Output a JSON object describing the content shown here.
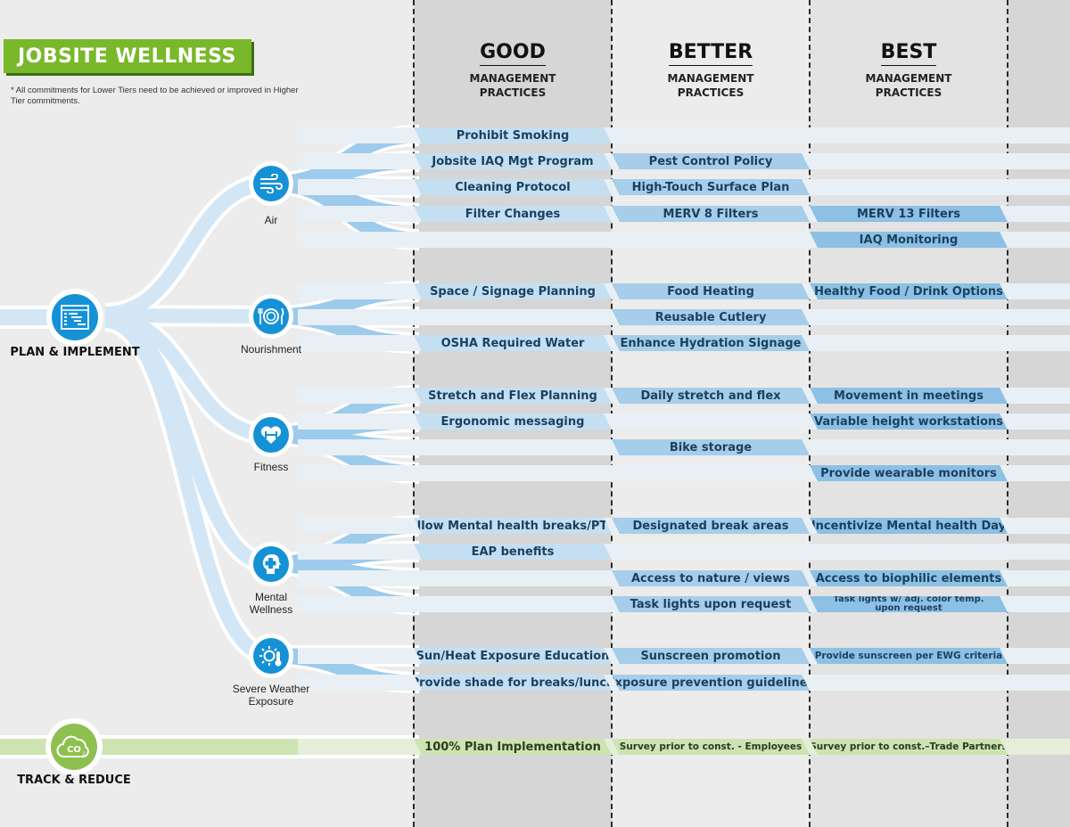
{
  "title": "JOBSITE WELLNESS",
  "note": "* All commitments for Lower Tiers need to be achieved or improved in Higher Tier commitments.",
  "columns": [
    {
      "title": "GOOD",
      "sub1": "MANAGEMENT",
      "sub2": "PRACTICES"
    },
    {
      "title": "BETTER",
      "sub1": "MANAGEMENT",
      "sub2": "PRACTICES"
    },
    {
      "title": "BEST",
      "sub1": "MANAGEMENT",
      "sub2": "PRACTICES"
    }
  ],
  "nodes": {
    "plan": "PLAN & IMPLEMENT",
    "air": "Air",
    "nourishment": "Nourishment",
    "fitness": "Fitness",
    "mental1": "Mental",
    "mental2": "Wellness",
    "weather1": "Severe Weather",
    "weather2": "Exposure",
    "track": "TRACK & REDUCE"
  },
  "rows": {
    "air": {
      "0": {
        "0": "Prohibit Smoking"
      },
      "1": {
        "0": "Jobsite IAQ Mgt Program",
        "1": "Pest Control Policy"
      },
      "2": {
        "0": "Cleaning Protocol",
        "1": "High-Touch Surface Plan"
      },
      "3": {
        "0": "Filter Changes",
        "1": "MERV 8 Filters",
        "2": "MERV 13 Filters"
      },
      "4": {
        "2": "IAQ Monitoring"
      }
    },
    "nourishment": {
      "0": {
        "0": "Space / Signage Planning",
        "1": "Food Heating",
        "2": "Healthy Food / Drink Options"
      },
      "1": {
        "1": "Reusable Cutlery"
      },
      "2": {
        "0": "OSHA Required Water",
        "1": "Enhance Hydration Signage"
      }
    },
    "fitness": {
      "0": {
        "0": "Stretch and Flex Planning",
        "1": "Daily stretch and flex",
        "2": "Movement in meetings"
      },
      "1": {
        "0": "Ergonomic messaging",
        "2": "Variable height workstations"
      },
      "2": {
        "1": "Bike storage"
      },
      "3": {
        "2": "Provide wearable monitors"
      }
    },
    "mental": {
      "0": {
        "0": "Allow Mental health breaks/PTO",
        "1": "Designated break areas",
        "2": "Incentivize Mental health Day"
      },
      "1": {
        "0": "EAP benefits"
      },
      "2": {
        "1": "Access to nature / views",
        "2": "Access to biophilic elements"
      },
      "3": {
        "1": "Task lights upon request",
        "2a": "Task lights w/ adj. color temp.",
        "2b": "upon request"
      }
    },
    "weather": {
      "0": {
        "0": "Sun/Heat Exposure Education",
        "1": "Sunscreen promotion",
        "2": "Provide sunscreen per EWG criteria"
      },
      "1": {
        "0": "Provide shade for breaks/lunch",
        "1": "Exposure prevention guidelines"
      }
    },
    "track": [
      "100% Plan Implementation",
      "Survey prior to const. - Employees",
      "Survey prior to const.–Trade Partners"
    ]
  },
  "colors": {
    "title_green": "#78b82a",
    "node_blue": "#1591d6",
    "node_green": "#8dc04f",
    "ribbon_light": "#d3e6f5",
    "ribbon_dark": "#9dcbeb",
    "cell_good": "#c4dff2",
    "cell_better": "#a6cde9",
    "cell_best": "#8cc0e4",
    "track_green": "#cde3b2",
    "text_navy": "#1b3f5e"
  }
}
